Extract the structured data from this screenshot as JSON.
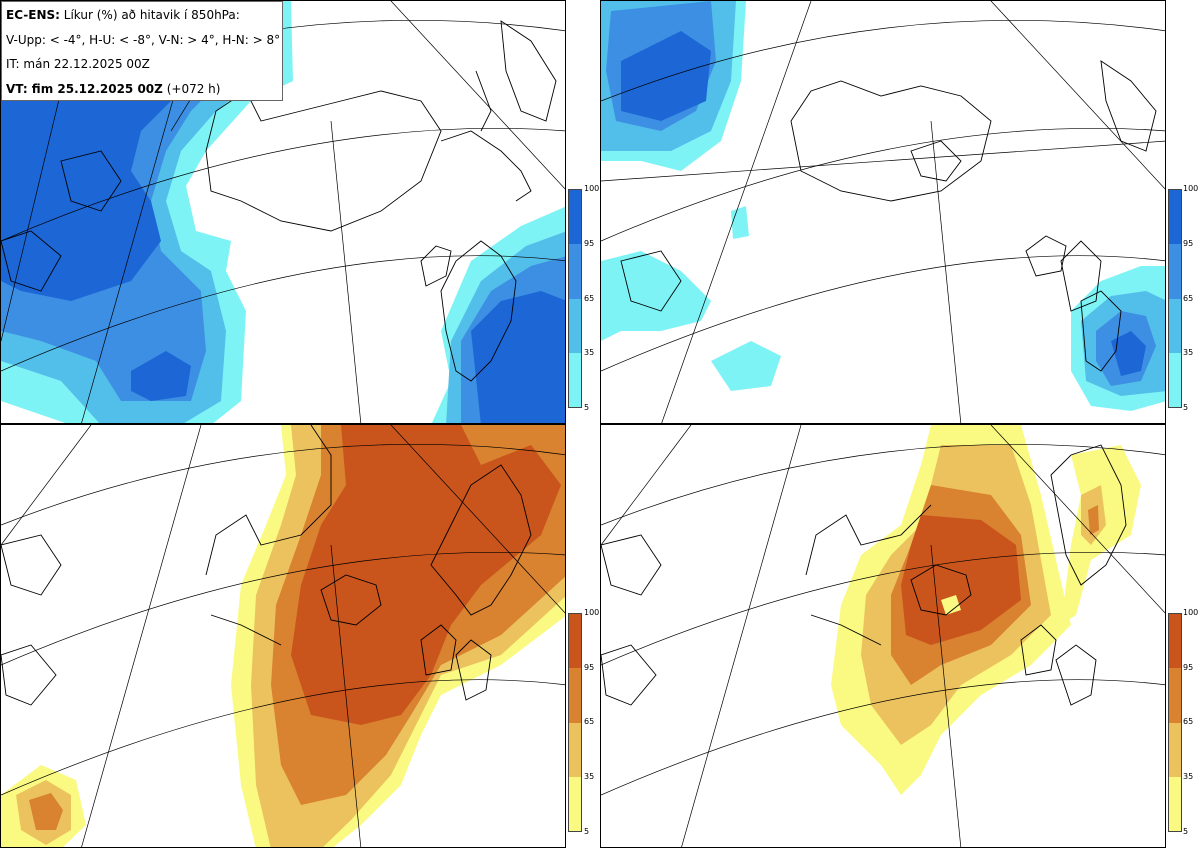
{
  "header": {
    "model": "EC-ENS:",
    "description": "Líkur (%) að hitavik í 850hPa:",
    "thresholds": "V-Upp: < -4°, H-U: < -8°, V-N: > 4°, H-N: > 8°",
    "init_time": "IT: mán 22.12.2025 00Z",
    "valid_label": "VT: fim 25.12.2025 00Z",
    "lead_time": "(+072 h)"
  },
  "colorbars": {
    "cold": {
      "labels": [
        "100",
        "95",
        "65",
        "35",
        "5"
      ],
      "colors": [
        "#1c66d6",
        "#3d8fe3",
        "#52bfea",
        "#7ef3f5"
      ]
    },
    "warm": {
      "labels": [
        "100",
        "95",
        "65",
        "35",
        "5"
      ],
      "colors": [
        "#c9541c",
        "#d9822f",
        "#ecc25e",
        "#fafa82"
      ]
    }
  },
  "panels": [
    {
      "id": "top-left",
      "quadrant": "V-Upp",
      "scheme": "cold"
    },
    {
      "id": "top-right",
      "quadrant": "H-U",
      "scheme": "cold"
    },
    {
      "id": "bottom-left",
      "quadrant": "V-N",
      "scheme": "warm"
    },
    {
      "id": "bottom-right",
      "quadrant": "H-N",
      "scheme": "warm"
    }
  ]
}
